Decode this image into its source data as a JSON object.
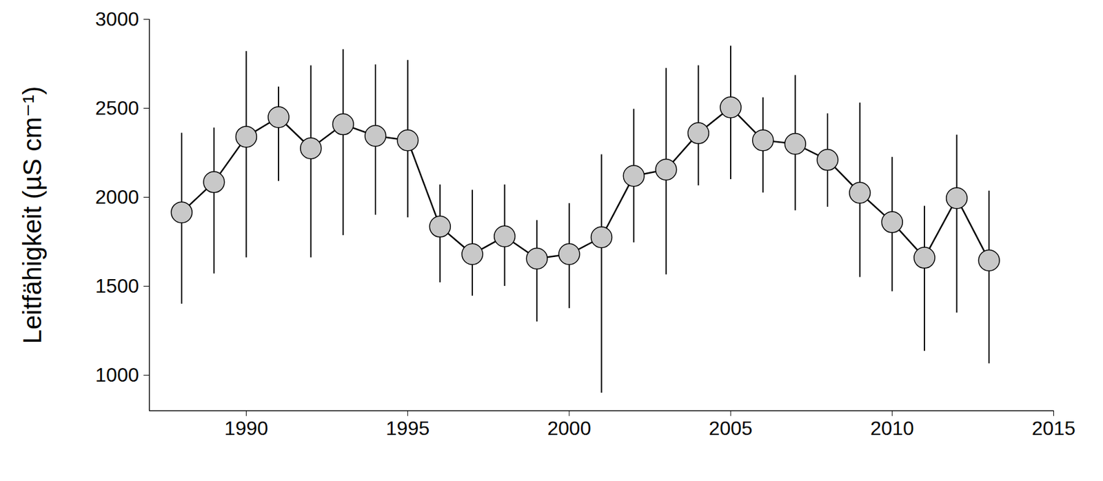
{
  "chart_data": {
    "type": "line",
    "y_label": "Leitfähigkeit (µS cm⁻¹)",
    "x": [
      1988,
      1989,
      1990,
      1991,
      1992,
      1993,
      1994,
      1995,
      1996,
      1997,
      1998,
      1999,
      2000,
      2001,
      2002,
      2003,
      2004,
      2005,
      2006,
      2007,
      2008,
      2009,
      2010,
      2011,
      2012,
      2013
    ],
    "values": [
      1915,
      2085,
      2340,
      2450,
      2275,
      2410,
      2345,
      2320,
      1835,
      1680,
      1780,
      1655,
      1680,
      1775,
      2120,
      2155,
      2360,
      2505,
      2320,
      2300,
      2210,
      2025,
      1860,
      1660,
      1995,
      1645
    ],
    "error_lower": [
      1400,
      1570,
      1660,
      2090,
      1660,
      1785,
      1900,
      1885,
      1520,
      1445,
      1500,
      1300,
      1375,
      900,
      1745,
      1565,
      2065,
      2100,
      2025,
      1925,
      1945,
      1550,
      1470,
      1135,
      1350,
      1065
    ],
    "error_upper": [
      2360,
      2390,
      2820,
      2620,
      2740,
      2830,
      2745,
      2770,
      2070,
      2040,
      2070,
      1870,
      1965,
      2240,
      2495,
      2725,
      2740,
      2850,
      2560,
      2685,
      2470,
      2530,
      2225,
      1950,
      2350,
      2035
    ],
    "color": "#000000",
    "marker": "circle",
    "line_style": "solid",
    "xlim": [
      1987,
      2015
    ],
    "xticks": [
      1990,
      1995,
      2000,
      2005,
      2010,
      2015
    ],
    "ylim": [
      800,
      3000
    ],
    "yticks": [
      1000,
      1500,
      2000,
      2500,
      3000
    ],
    "grid": false
  }
}
